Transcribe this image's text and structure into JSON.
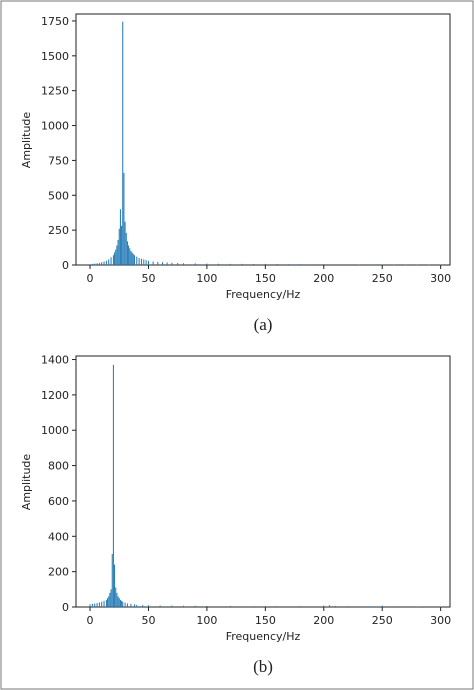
{
  "chart_data": [
    {
      "type": "bar",
      "panel_label": "(a)",
      "xlabel": "Frequency/Hz",
      "ylabel": "Amplitude",
      "xlim": [
        -12,
        308
      ],
      "ylim": [
        0,
        1800
      ],
      "xticks": [
        0,
        50,
        100,
        150,
        200,
        250,
        300
      ],
      "yticks": [
        0,
        250,
        500,
        750,
        1000,
        1250,
        1500,
        1750
      ],
      "color": "#1f77b4",
      "series": [
        {
          "x": [
            0,
            2,
            4,
            6,
            8,
            10,
            12,
            14,
            16,
            18,
            20,
            21,
            22,
            23,
            24,
            25,
            26,
            27,
            28,
            29,
            30,
            31,
            32,
            33,
            34,
            35,
            36,
            37,
            38,
            40,
            42,
            44,
            46,
            48,
            50,
            54,
            58,
            62,
            66,
            70,
            75,
            80,
            90,
            100,
            110,
            120,
            130,
            140,
            150,
            160,
            170,
            180,
            190,
            200,
            210,
            220,
            230,
            240,
            250,
            260,
            270,
            280,
            290,
            300
          ],
          "values": [
            5,
            8,
            10,
            12,
            15,
            20,
            25,
            30,
            40,
            55,
            70,
            90,
            110,
            140,
            180,
            260,
            400,
            280,
            1745,
            660,
            310,
            230,
            170,
            140,
            120,
            100,
            90,
            80,
            70,
            60,
            50,
            45,
            40,
            35,
            30,
            25,
            22,
            20,
            18,
            16,
            14,
            12,
            12,
            10,
            9,
            8,
            8,
            7,
            8,
            7,
            6,
            6,
            5,
            6,
            5,
            5,
            4,
            5,
            4,
            4,
            4,
            3,
            3,
            3
          ]
        }
      ]
    },
    {
      "type": "bar",
      "panel_label": "(b)",
      "xlabel": "Frequency/Hz",
      "ylabel": "Amplitude",
      "xlim": [
        -12,
        308
      ],
      "ylim": [
        0,
        1420
      ],
      "xticks": [
        0,
        50,
        100,
        150,
        200,
        250,
        300
      ],
      "yticks": [
        0,
        200,
        400,
        600,
        800,
        1000,
        1200,
        1400
      ],
      "color": "#1f77b4",
      "series": [
        {
          "x": [
            0,
            2,
            4,
            6,
            8,
            10,
            12,
            14,
            15,
            16,
            17,
            18,
            19,
            20,
            21,
            22,
            23,
            24,
            25,
            26,
            27,
            28,
            30,
            32,
            35,
            38,
            40,
            45,
            50,
            60,
            70,
            80,
            90,
            100,
            120,
            140,
            160,
            180,
            200,
            205,
            210,
            220,
            240,
            250,
            260,
            280,
            300
          ],
          "values": [
            15,
            18,
            20,
            22,
            25,
            30,
            35,
            40,
            50,
            60,
            80,
            100,
            300,
            1370,
            240,
            110,
            80,
            60,
            50,
            40,
            35,
            30,
            25,
            20,
            18,
            15,
            12,
            10,
            10,
            8,
            8,
            7,
            7,
            6,
            6,
            5,
            5,
            5,
            8,
            10,
            6,
            5,
            4,
            8,
            4,
            3,
            3
          ]
        }
      ]
    }
  ]
}
